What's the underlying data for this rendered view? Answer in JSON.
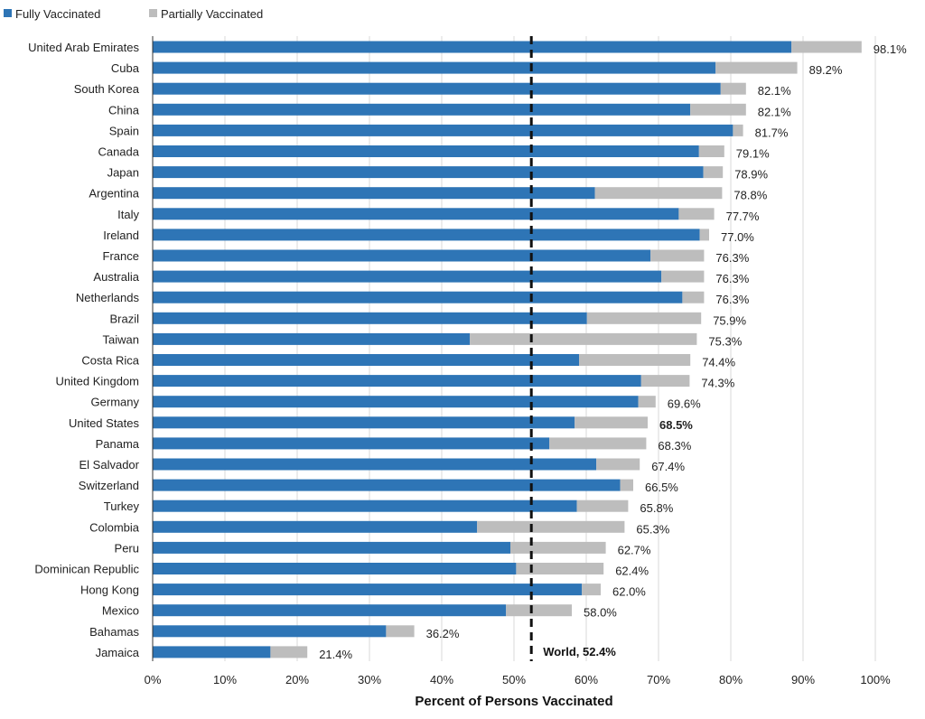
{
  "chart_data": {
    "type": "bar",
    "orientation": "horizontal",
    "stacked": true,
    "xlabel": "Percent of Persons Vaccinated",
    "xlim": [
      0,
      100
    ],
    "x_ticks": [
      "0%",
      "10%",
      "20%",
      "30%",
      "40%",
      "50%",
      "60%",
      "70%",
      "80%",
      "90%",
      "100%"
    ],
    "grid": "vertical",
    "legend_position": "top-left",
    "categories": [
      "United Arab Emirates",
      "Cuba",
      "South Korea",
      "China",
      "Spain",
      "Canada",
      "Japan",
      "Argentina",
      "Italy",
      "Ireland",
      "France",
      "Australia",
      "Netherlands",
      "Brazil",
      "Taiwan",
      "Costa Rica",
      "United Kingdom",
      "Germany",
      "United States",
      "Panama",
      "El Salvador",
      "Switzerland",
      "Turkey",
      "Colombia",
      "Peru",
      "Dominican Republic",
      "Hong Kong",
      "Mexico",
      "Bahamas",
      "Jamaica"
    ],
    "series": [
      {
        "name": "Fully Vaccinated",
        "color": "#2e75b6",
        "values": [
          88.4,
          77.9,
          78.6,
          74.4,
          80.3,
          75.6,
          76.2,
          61.2,
          72.8,
          75.7,
          68.9,
          70.4,
          73.3,
          60.1,
          43.9,
          59.0,
          67.6,
          67.2,
          58.4,
          54.9,
          61.4,
          64.7,
          58.7,
          44.9,
          49.5,
          50.3,
          59.4,
          48.9,
          32.3,
          16.3
        ]
      },
      {
        "name": "Partially Vaccinated",
        "color": "#bdbdbd",
        "values": [
          9.7,
          11.3,
          3.5,
          7.7,
          1.4,
          3.5,
          2.7,
          17.6,
          4.9,
          1.3,
          7.4,
          5.9,
          3.0,
          15.8,
          31.4,
          15.4,
          6.7,
          2.4,
          10.1,
          13.4,
          6.0,
          1.8,
          7.1,
          20.4,
          13.2,
          12.1,
          2.6,
          9.1,
          3.9,
          5.1
        ]
      }
    ],
    "totals": [
      "98.1%",
      "89.2%",
      "82.1%",
      "82.1%",
      "81.7%",
      "79.1%",
      "78.9%",
      "78.8%",
      "77.7%",
      "77.0%",
      "76.3%",
      "76.3%",
      "76.3%",
      "75.9%",
      "75.3%",
      "74.4%",
      "74.3%",
      "69.6%",
      "68.5%",
      "68.3%",
      "67.4%",
      "66.5%",
      "65.8%",
      "65.3%",
      "62.7%",
      "62.4%",
      "62.0%",
      "58.0%",
      "36.2%",
      "21.4%"
    ],
    "highlight_category": "United States",
    "reference_line": {
      "label": "World, 52.4%",
      "value": 52.4,
      "style": "dashed",
      "color": "#111111"
    }
  }
}
